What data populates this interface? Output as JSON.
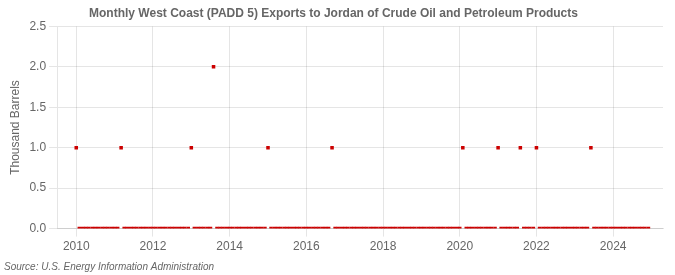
{
  "chart_data": {
    "type": "scatter",
    "title": "Monthly West Coast (PADD 5) Exports to Jordan of Crude Oil and Petroleum Products",
    "y_label": "Thousand Barrels",
    "source": "Source: U.S. Energy Information Administration",
    "color": "#cc0000",
    "marker": "square",
    "grid": true,
    "xlim": [
      2009.5,
      2025.3
    ],
    "xticks": [
      2010,
      2012,
      2014,
      2016,
      2018,
      2020,
      2022,
      2024
    ],
    "ylim": [
      0.0,
      2.5
    ],
    "yticks": [
      {
        "value": 0.0,
        "label": "0.0"
      },
      0.5,
      {
        "value": 1.0,
        "label": "1.0"
      },
      1.5,
      {
        "value": 2.0,
        "label": "2.0"
      },
      2.5
    ],
    "x": [
      2010.0,
      2010.08,
      2010.17,
      2010.25,
      2010.33,
      2010.42,
      2010.5,
      2010.58,
      2010.67,
      2010.75,
      2010.83,
      2010.92,
      2011.0,
      2011.08,
      2011.17,
      2011.25,
      2011.33,
      2011.42,
      2011.5,
      2011.58,
      2011.67,
      2011.75,
      2011.83,
      2011.92,
      2012.0,
      2012.08,
      2012.17,
      2012.25,
      2012.33,
      2012.42,
      2012.5,
      2012.58,
      2012.67,
      2012.75,
      2012.83,
      2012.92,
      2013.0,
      2013.08,
      2013.17,
      2013.25,
      2013.33,
      2013.42,
      2013.5,
      2013.58,
      2013.67,
      2013.75,
      2013.83,
      2013.92,
      2014.0,
      2014.08,
      2014.17,
      2014.25,
      2014.33,
      2014.42,
      2014.5,
      2014.58,
      2014.67,
      2014.75,
      2014.83,
      2014.92,
      2015.0,
      2015.08,
      2015.17,
      2015.25,
      2015.33,
      2015.42,
      2015.5,
      2015.58,
      2015.67,
      2015.75,
      2015.83,
      2015.92,
      2016.0,
      2016.08,
      2016.17,
      2016.25,
      2016.33,
      2016.42,
      2016.5,
      2016.58,
      2016.67,
      2016.75,
      2016.83,
      2016.92,
      2017.0,
      2017.08,
      2017.17,
      2017.25,
      2017.33,
      2017.42,
      2017.5,
      2017.58,
      2017.67,
      2017.75,
      2017.83,
      2017.92,
      2018.0,
      2018.08,
      2018.17,
      2018.25,
      2018.33,
      2018.42,
      2018.5,
      2018.58,
      2018.67,
      2018.75,
      2018.83,
      2018.92,
      2019.0,
      2019.08,
      2019.17,
      2019.25,
      2019.33,
      2019.42,
      2019.5,
      2019.58,
      2019.67,
      2019.75,
      2019.83,
      2019.92,
      2020.0,
      2020.08,
      2020.17,
      2020.25,
      2020.33,
      2020.42,
      2020.5,
      2020.58,
      2020.67,
      2020.75,
      2020.83,
      2020.92,
      2021.0,
      2021.08,
      2021.17,
      2021.25,
      2021.33,
      2021.42,
      2021.5,
      2021.58,
      2021.67,
      2021.75,
      2021.83,
      2021.92,
      2022.0,
      2022.08,
      2022.17,
      2022.25,
      2022.33,
      2022.42,
      2022.5,
      2022.58,
      2022.67,
      2022.75,
      2022.83,
      2022.92,
      2023.0,
      2023.08,
      2023.17,
      2023.25,
      2023.33,
      2023.42,
      2023.5,
      2023.58,
      2023.67,
      2023.75,
      2023.83,
      2023.92,
      2024.0,
      2024.08,
      2024.17,
      2024.25,
      2024.33,
      2024.42,
      2024.5,
      2024.58,
      2024.67,
      2024.75,
      2024.83,
      2024.92
    ],
    "values": [
      1.0,
      0.0,
      0.0,
      0.0,
      0.0,
      0.0,
      0.0,
      0.0,
      0.0,
      0.0,
      0.0,
      0.0,
      0.0,
      0.0,
      1.0,
      0.0,
      0.0,
      0.0,
      0.0,
      0.0,
      0.0,
      0.0,
      0.0,
      0.0,
      0.0,
      0.0,
      0.0,
      0.0,
      0.0,
      0.0,
      0.0,
      0.0,
      0.0,
      0.0,
      0.0,
      0.0,
      1.0,
      0.0,
      0.0,
      0.0,
      0.0,
      0.0,
      0.0,
      2.0,
      0.0,
      0.0,
      0.0,
      0.0,
      0.0,
      0.0,
      0.0,
      0.0,
      0.0,
      0.0,
      0.0,
      0.0,
      0.0,
      0.0,
      0.0,
      0.0,
      1.0,
      0.0,
      0.0,
      0.0,
      0.0,
      0.0,
      0.0,
      0.0,
      0.0,
      0.0,
      0.0,
      0.0,
      0.0,
      0.0,
      0.0,
      0.0,
      0.0,
      0.0,
      0.0,
      0.0,
      1.0,
      0.0,
      0.0,
      0.0,
      0.0,
      0.0,
      0.0,
      0.0,
      0.0,
      0.0,
      0.0,
      0.0,
      0.0,
      0.0,
      0.0,
      0.0,
      0.0,
      0.0,
      0.0,
      0.0,
      0.0,
      0.0,
      0.0,
      0.0,
      0.0,
      0.0,
      0.0,
      0.0,
      0.0,
      0.0,
      0.0,
      0.0,
      0.0,
      0.0,
      0.0,
      0.0,
      0.0,
      0.0,
      0.0,
      0.0,
      0.0,
      1.0,
      0.0,
      0.0,
      0.0,
      0.0,
      0.0,
      0.0,
      0.0,
      0.0,
      0.0,
      0.0,
      1.0,
      0.0,
      0.0,
      0.0,
      0.0,
      0.0,
      0.0,
      1.0,
      0.0,
      0.0,
      0.0,
      0.0,
      1.0,
      0.0,
      0.0,
      0.0,
      0.0,
      0.0,
      0.0,
      0.0,
      0.0,
      0.0,
      0.0,
      0.0,
      0.0,
      0.0,
      0.0,
      0.0,
      0.0,
      1.0,
      0.0,
      0.0,
      0.0,
      0.0,
      0.0,
      0.0,
      0.0,
      0.0,
      0.0,
      0.0,
      0.0,
      0.0,
      0.0,
      0.0,
      0.0,
      0.0,
      0.0,
      0.0
    ]
  }
}
